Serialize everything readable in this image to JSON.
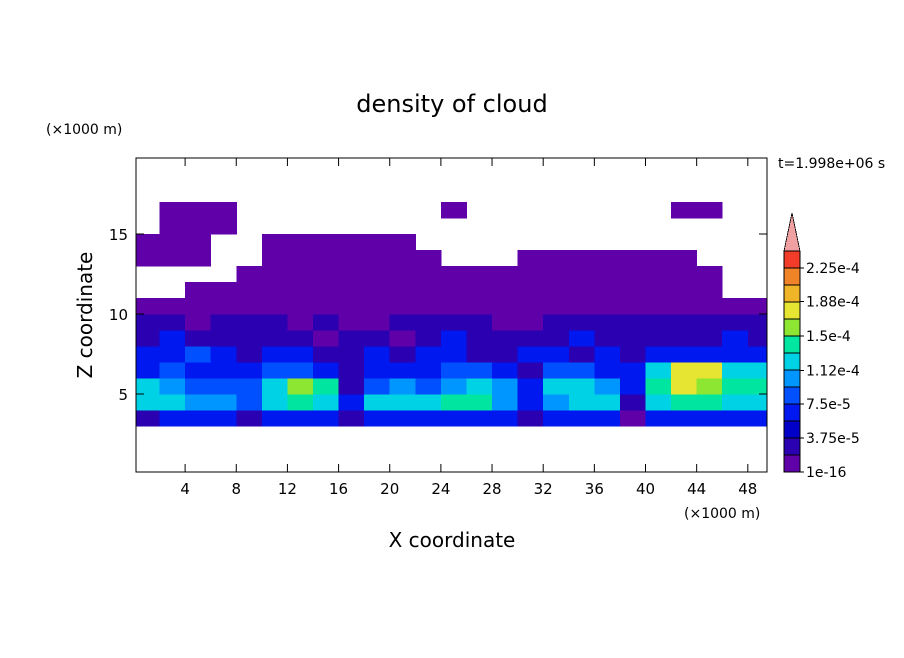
{
  "chart_data": {
    "type": "contour",
    "title": "density of cloud",
    "time_label": "t=1.998e+06 s",
    "xlabel": "X coordinate",
    "ylabel": "Z coordinate",
    "x_unit": "(×1000 m)",
    "y_unit": "(×1000 m)",
    "xlim": [
      0.16,
      49.5
    ],
    "ylim": [
      0.125,
      19.75
    ],
    "xticks": [
      4,
      8,
      12,
      16,
      20,
      24,
      28,
      32,
      36,
      40,
      44,
      48
    ],
    "yticks": [
      5,
      10,
      15
    ],
    "x": [
      1,
      3,
      5,
      7,
      9,
      11,
      13,
      15,
      17,
      19,
      21,
      23,
      25,
      27,
      29,
      31,
      33,
      35,
      37,
      39,
      41,
      43,
      45,
      47,
      49
    ],
    "y": [
      3.5,
      4.5,
      5.5,
      6.5,
      7.5,
      8.5,
      9.5,
      10.5,
      11.5,
      12.5,
      13.5,
      14.5,
      15.5,
      16.5
    ],
    "z": [
      [
        3e-05,
        6e-05,
        6e-05,
        6e-05,
        3e-05,
        6e-05,
        6e-05,
        6e-05,
        3e-05,
        6e-05,
        6e-05,
        6e-05,
        6e-05,
        6e-05,
        6e-05,
        3e-05,
        6e-05,
        6e-05,
        6e-05,
        1e-05,
        6e-05,
        6e-05,
        6e-05,
        6e-05,
        6e-05
      ],
      [
        0.00012,
        0.00012,
        0.000105,
        0.000105,
        9e-05,
        0.00012,
        0.00014,
        0.00012,
        6e-05,
        0.00012,
        0.00012,
        0.00012,
        0.00014,
        0.00014,
        0.000105,
        6e-05,
        0.000105,
        0.00012,
        0.00012,
        3e-05,
        0.00012,
        0.00014,
        0.00014,
        0.00012,
        0.00012
      ],
      [
        0.00012,
        0.000105,
        9e-05,
        9e-05,
        9e-05,
        0.00012,
        0.00016,
        0.00014,
        3e-05,
        9e-05,
        0.000105,
        9e-05,
        0.000105,
        0.00012,
        0.000105,
        6e-05,
        0.00012,
        0.00012,
        0.000105,
        6e-05,
        0.00014,
        0.00018,
        0.00016,
        0.00014,
        0.00014
      ],
      [
        6e-05,
        9e-05,
        6e-05,
        6e-05,
        6e-05,
        9e-05,
        9e-05,
        6e-05,
        3e-05,
        6e-05,
        6e-05,
        6e-05,
        9e-05,
        9e-05,
        6e-05,
        3e-05,
        9e-05,
        9e-05,
        6e-05,
        6e-05,
        0.00012,
        0.00018,
        0.00018,
        0.00012,
        0.00012
      ],
      [
        6e-05,
        6e-05,
        9e-05,
        6e-05,
        3e-05,
        6e-05,
        6e-05,
        3e-05,
        3e-05,
        6e-05,
        3e-05,
        6e-05,
        6e-05,
        3e-05,
        3e-05,
        6e-05,
        6e-05,
        3e-05,
        6e-05,
        3e-05,
        6e-05,
        6e-05,
        6e-05,
        6e-05,
        6e-05
      ],
      [
        3e-05,
        6e-05,
        3e-05,
        3e-05,
        3e-05,
        3e-05,
        3e-05,
        1e-05,
        3e-05,
        3e-05,
        1e-05,
        3e-05,
        6e-05,
        3e-05,
        3e-05,
        3e-05,
        3e-05,
        6e-05,
        3e-05,
        3e-05,
        3e-05,
        3e-05,
        3e-05,
        6e-05,
        3e-05
      ],
      [
        3e-05,
        3e-05,
        1e-05,
        3e-05,
        3e-05,
        3e-05,
        1e-05,
        3e-05,
        1e-05,
        1e-05,
        3e-05,
        3e-05,
        3e-05,
        3e-05,
        1e-05,
        1e-05,
        3e-05,
        3e-05,
        3e-05,
        3e-05,
        3e-05,
        3e-05,
        3e-05,
        3e-05,
        3e-05
      ],
      [
        1e-05,
        1e-05,
        1e-05,
        1e-05,
        1e-05,
        1e-05,
        1e-05,
        1e-05,
        1e-05,
        1e-05,
        1e-05,
        1e-05,
        1e-05,
        1e-05,
        1e-05,
        1e-05,
        1e-05,
        1e-05,
        1e-05,
        1e-05,
        1e-05,
        1e-05,
        1e-05,
        1e-05,
        1e-05
      ],
      [
        null,
        null,
        1e-05,
        1e-05,
        1e-05,
        1e-05,
        1e-05,
        1e-05,
        1e-05,
        1e-05,
        1e-05,
        1e-05,
        1e-05,
        1e-05,
        1e-05,
        1e-05,
        1e-05,
        1e-05,
        1e-05,
        1e-05,
        1e-05,
        1e-05,
        1e-05,
        null,
        null
      ],
      [
        null,
        null,
        null,
        null,
        1e-05,
        1e-05,
        1e-05,
        1e-05,
        1e-05,
        1e-05,
        1e-05,
        1e-05,
        1e-05,
        1e-05,
        1e-05,
        1e-05,
        1e-05,
        1e-05,
        1e-05,
        1e-05,
        1e-05,
        1e-05,
        1e-05,
        null,
        null
      ],
      [
        1e-05,
        1e-05,
        1e-05,
        null,
        null,
        1e-05,
        1e-05,
        1e-05,
        1e-05,
        1e-05,
        1e-05,
        1e-05,
        null,
        null,
        null,
        1e-05,
        1e-05,
        1e-05,
        1e-05,
        1e-05,
        1e-05,
        1e-05,
        null,
        null,
        null
      ],
      [
        1e-05,
        1e-05,
        1e-05,
        null,
        null,
        1e-05,
        1e-05,
        1e-05,
        1e-05,
        1e-05,
        1e-05,
        null,
        null,
        null,
        null,
        null,
        null,
        null,
        null,
        null,
        null,
        null,
        null,
        null,
        null
      ],
      [
        null,
        1e-05,
        1e-05,
        1e-05,
        null,
        null,
        null,
        null,
        null,
        null,
        null,
        null,
        null,
        null,
        null,
        null,
        null,
        null,
        null,
        null,
        null,
        null,
        null,
        null,
        null
      ],
      [
        null,
        1e-05,
        1e-05,
        1e-05,
        null,
        null,
        null,
        null,
        null,
        null,
        null,
        null,
        1e-05,
        null,
        null,
        null,
        null,
        null,
        null,
        null,
        null,
        1e-05,
        1e-05,
        null,
        null
      ]
    ],
    "levels": [
      1e-16,
      1.875e-05,
      3.75e-05,
      5.625e-05,
      7.5e-05,
      9.375e-05,
      0.0001125,
      0.00013125,
      0.00015,
      0.00016875,
      0.0001875,
      0.00020625,
      0.000225,
      0.00024375
    ],
    "colors": [
      "#5f00a8",
      "#2a00b0",
      "#0000c8",
      "#0018f0",
      "#0050ff",
      "#0096ff",
      "#00d2e6",
      "#00e6a0",
      "#8ce632",
      "#e6e632",
      "#f0b428",
      "#f08228",
      "#f03c28",
      "#f0a0a0"
    ],
    "colorbar_ticks": [
      1e-16,
      {
        "value": 3.75e-05,
        "label": "3.75e-5"
      },
      {
        "value": 7.5e-05,
        "label": "7.5e-5"
      },
      {
        "value": 0.000112,
        "label": "1.12e-4"
      },
      {
        "value": 0.00015,
        "label": "1.5e-4"
      },
      {
        "value": 0.000188,
        "label": "1.88e-4"
      },
      {
        "value": 0.000225,
        "label": "2.25e-4"
      }
    ]
  }
}
